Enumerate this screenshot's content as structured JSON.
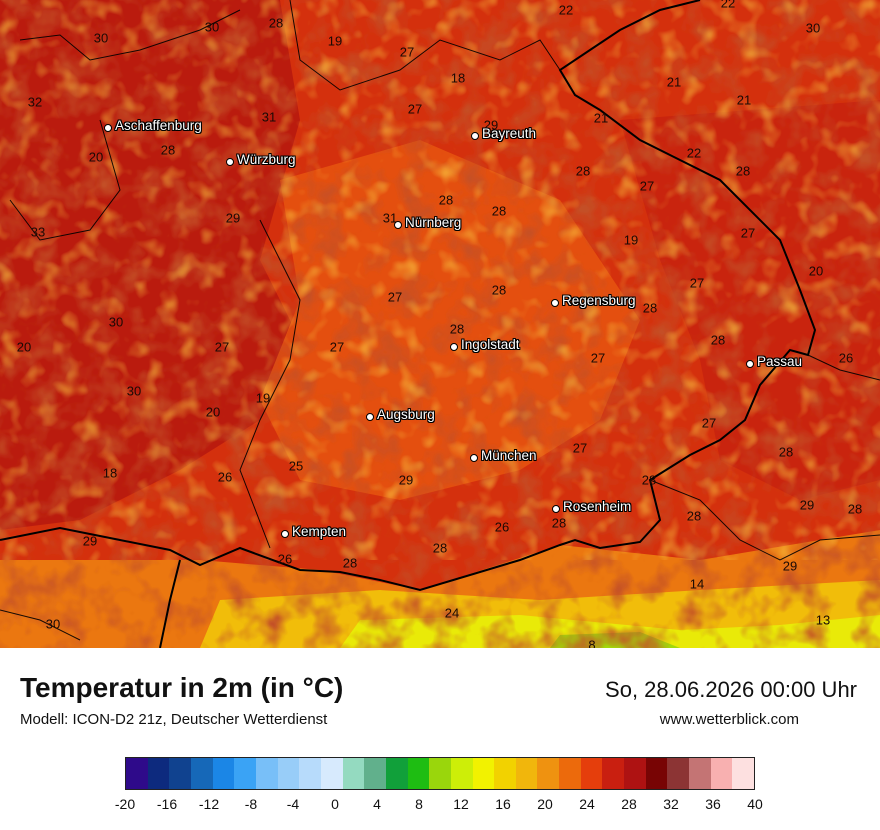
{
  "title": "Temperatur in 2m (in °C)",
  "subtitle": "Modell: ICON-D2 21z, Deutscher Wetterdienst",
  "datetime": "So, 28.06.2026 00:00 Uhr",
  "website": "www.wetterblick.com",
  "cities": [
    {
      "name": "Aschaffenburg"
    },
    {
      "name": "Würzburg"
    },
    {
      "name": "Bayreuth"
    },
    {
      "name": "Nürnberg"
    },
    {
      "name": "Regensburg"
    },
    {
      "name": "Ingolstadt"
    },
    {
      "name": "Passau"
    },
    {
      "name": "Augsburg"
    },
    {
      "name": "München"
    },
    {
      "name": "Rosenheim"
    },
    {
      "name": "Kempten"
    }
  ],
  "values": [
    "30",
    "30",
    "28",
    "19",
    "27",
    "22",
    "22",
    "30",
    "32",
    "31",
    "18",
    "27",
    "29",
    "21",
    "21",
    "21",
    "28",
    "20",
    "22",
    "28",
    "27",
    "28",
    "33",
    "29",
    "31",
    "28",
    "28",
    "19",
    "27",
    "20",
    "30",
    "27",
    "28",
    "28",
    "27",
    "20",
    "27",
    "27",
    "28",
    "28",
    "26",
    "30",
    "19",
    "20",
    "27",
    "28",
    "18",
    "26",
    "25",
    "29",
    "27",
    "28",
    "28",
    "29",
    "27",
    "29",
    "26",
    "28",
    "28",
    "26",
    "28",
    "14",
    "29",
    "28",
    "30",
    "24",
    "13",
    "8"
  ],
  "legend": {
    "colors": [
      "#2e0a8a",
      "#0d2a7e",
      "#10428f",
      "#1668b8",
      "#1b86e6",
      "#3aa3f5",
      "#78bff8",
      "#98cdf8",
      "#b7dbfb",
      "#d7eafd",
      "#94dac0",
      "#61b08c",
      "#11a03a",
      "#1ebd12",
      "#9ad60c",
      "#cdee08",
      "#f2f200",
      "#f2d200",
      "#f1b60c",
      "#ef9210",
      "#ec6a0c",
      "#e53e0c",
      "#c91f10",
      "#ae1212",
      "#780404",
      "#8c3434",
      "#c47474",
      "#f8b0b0",
      "#fde0e0"
    ],
    "ticks": [
      "-20",
      "-16",
      "-12",
      "-8",
      "-4",
      "0",
      "4",
      "8",
      "12",
      "16",
      "20",
      "24",
      "28",
      "32",
      "36",
      "40"
    ]
  }
}
